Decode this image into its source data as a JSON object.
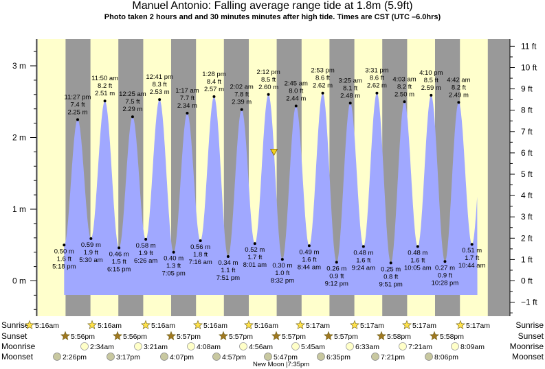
{
  "title": "Manuel Antonio: Falling average range tide at 1.8m (5.9ft)",
  "subtitle": "Photo taken 2 hours and and 30 minutes minutes after high tide. Times are CST (UTC –6.0hrs)",
  "colors": {
    "day": "#ffffcc",
    "night": "#999999",
    "tide_fill": "#a0a8ff",
    "marker": "#f0d020"
  },
  "chart_data": {
    "type": "area",
    "title": "Manuel Antonio: Falling average range tide at 1.8m (5.9ft)",
    "y_left": {
      "ticks": [
        "0 m",
        "1 m",
        "2 m",
        "3 m"
      ],
      "range_m": [
        -0.73,
        3.4
      ]
    },
    "y_right": {
      "ticks": [
        "−1 ft",
        "0 ft",
        "1 ft",
        "2 ft",
        "3 ft",
        "4 ft",
        "5 ft",
        "6 ft",
        "7 ft",
        "8 ft",
        "9 ft",
        "10 ft",
        "11 ft"
      ]
    },
    "current_level_m": 1.8,
    "tides": [
      {
        "type": "low",
        "t": 17.3,
        "label": "5:18 pm",
        "m": 0.5,
        "ft": 1.6
      },
      {
        "type": "high",
        "t": 23.45,
        "label": "11:27 pm",
        "m": 2.25,
        "ft": 7.4
      },
      {
        "type": "low",
        "t": 29.5,
        "label": "5:30 am",
        "m": 0.59,
        "ft": 1.9
      },
      {
        "type": "high",
        "t": 35.83,
        "label": "11:50 am",
        "m": 2.51,
        "ft": 8.2
      },
      {
        "type": "low",
        "t": 42.25,
        "label": "6:15 pm",
        "m": 0.46,
        "ft": 1.5
      },
      {
        "type": "high",
        "t": 48.42,
        "label": "12:25 am",
        "m": 2.29,
        "ft": 7.5
      },
      {
        "type": "low",
        "t": 54.43,
        "label": "6:26 am",
        "m": 0.58,
        "ft": 1.9
      },
      {
        "type": "high",
        "t": 60.68,
        "label": "12:41 pm",
        "m": 2.53,
        "ft": 8.3
      },
      {
        "type": "low",
        "t": 67.08,
        "label": "7:05 pm",
        "m": 0.4,
        "ft": 1.3
      },
      {
        "type": "high",
        "t": 73.28,
        "label": "1:17 am",
        "m": 2.34,
        "ft": 7.7
      },
      {
        "type": "low",
        "t": 79.27,
        "label": "7:16 am",
        "m": 0.56,
        "ft": 1.8
      },
      {
        "type": "high",
        "t": 85.47,
        "label": "1:28 pm",
        "m": 2.57,
        "ft": 8.4
      },
      {
        "type": "low",
        "t": 91.85,
        "label": "7:51 pm",
        "m": 0.34,
        "ft": 1.1
      },
      {
        "type": "high",
        "t": 98.03,
        "label": "2:02 am",
        "m": 2.39,
        "ft": 7.8
      },
      {
        "type": "low",
        "t": 104.02,
        "label": "8:01 am",
        "m": 0.52,
        "ft": 1.7
      },
      {
        "type": "high",
        "t": 110.2,
        "label": "2:12 pm",
        "m": 2.6,
        "ft": 8.5
      },
      {
        "type": "low",
        "t": 116.53,
        "label": "8:32 pm",
        "m": 0.3,
        "ft": 1.0
      },
      {
        "type": "high",
        "t": 122.75,
        "label": "2:45 am",
        "m": 2.44,
        "ft": 8.0
      },
      {
        "type": "low",
        "t": 128.73,
        "label": "8:44 am",
        "m": 0.49,
        "ft": 1.6
      },
      {
        "type": "high",
        "t": 134.88,
        "label": "2:53 pm",
        "m": 2.62,
        "ft": 8.6
      },
      {
        "type": "low",
        "t": 141.2,
        "label": "9:12 pm",
        "m": 0.26,
        "ft": 0.9
      },
      {
        "type": "high",
        "t": 147.42,
        "label": "3:25 am",
        "m": 2.48,
        "ft": 8.1
      },
      {
        "type": "low",
        "t": 153.4,
        "label": "9:24 am",
        "m": 0.48,
        "ft": 1.6
      },
      {
        "type": "high",
        "t": 159.52,
        "label": "3:31 pm",
        "m": 2.62,
        "ft": 8.6
      },
      {
        "type": "low",
        "t": 165.85,
        "label": "9:51 pm",
        "m": 0.25,
        "ft": 0.8
      },
      {
        "type": "high",
        "t": 172.05,
        "label": "4:03 am",
        "m": 2.5,
        "ft": 8.2
      },
      {
        "type": "low",
        "t": 178.08,
        "label": "10:05 am",
        "m": 0.48,
        "ft": 1.6
      },
      {
        "type": "high",
        "t": 184.17,
        "label": "4:10 pm",
        "m": 2.59,
        "ft": 8.5
      },
      {
        "type": "low",
        "t": 190.47,
        "label": "10:28 pm",
        "m": 0.27,
        "ft": 0.9
      },
      {
        "type": "high",
        "t": 196.7,
        "label": "4:42 am",
        "m": 2.49,
        "ft": 8.2
      },
      {
        "type": "low",
        "t": 202.73,
        "label": "10:44 am",
        "m": 0.51,
        "ft": 1.7
      }
    ],
    "days": [
      {
        "sunrise": "5:16am",
        "sunset": "5:56pm",
        "moonrise": "2:34am",
        "moonset": "2:26pm"
      },
      {
        "sunrise": "5:16am",
        "sunset": "5:56pm",
        "moonrise": "3:21am",
        "moonset": "3:17pm"
      },
      {
        "sunrise": "5:16am",
        "sunset": "5:57pm",
        "moonrise": "4:08am",
        "moonset": "4:07pm"
      },
      {
        "sunrise": "5:16am",
        "sunset": "5:57pm",
        "moonrise": "4:56am",
        "moonset": "4:57pm"
      },
      {
        "sunrise": "5:16am",
        "sunset": "5:57pm",
        "moonrise": "5:45am",
        "moonset": "5:47pm"
      },
      {
        "sunrise": "5:17am",
        "sunset": "5:57pm",
        "moonrise": "6:33am",
        "moonset": "6:35pm"
      },
      {
        "sunrise": "5:17am",
        "sunset": "5:58pm",
        "moonrise": "7:21am",
        "moonset": "7:21pm"
      },
      {
        "sunrise": "5:17am",
        "sunset": "5:58pm",
        "moonrise": "8:09am",
        "moonset": "8:06pm"
      },
      {
        "sunrise": "5:17am"
      }
    ],
    "row_labels": [
      "Sunrise",
      "Sunset",
      "Moonrise",
      "Moonset"
    ],
    "moon_phase": "New Moon |7:35pm"
  }
}
